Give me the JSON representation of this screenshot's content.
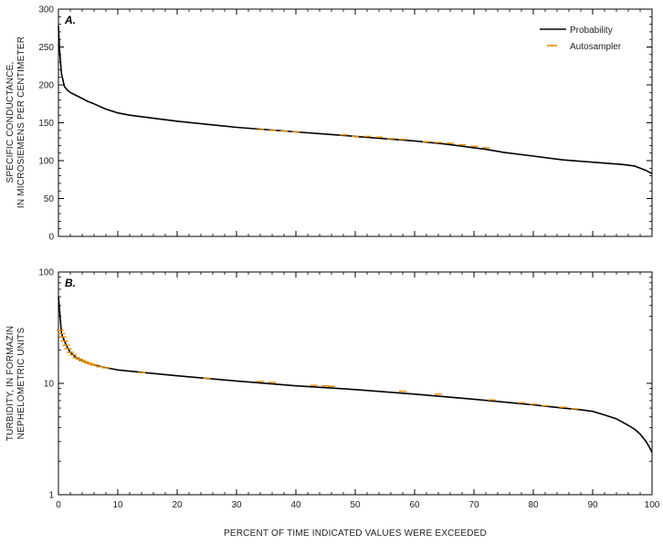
{
  "chart_data": [
    {
      "type": "line",
      "panel_label": "A.",
      "ylabel_lines": [
        "SPECIFIC CONDUCTANCE,",
        "IN MICROSIEMENS PER CENTIMETER"
      ],
      "xlabel": "",
      "xlim": [
        0,
        100
      ],
      "ylim": [
        0,
        300
      ],
      "yscale": "linear",
      "yticks": [
        0,
        50,
        100,
        150,
        200,
        250,
        300
      ],
      "xticks": [
        0,
        10,
        20,
        30,
        40,
        50,
        60,
        70,
        80,
        90,
        100
      ],
      "x_tick_labels_shown": false,
      "legend": {
        "placement": "top-right",
        "entries": [
          {
            "name": "Probability",
            "color": "#000000",
            "style": "solid"
          },
          {
            "name": "Autosampler",
            "color": "#e08a00",
            "style": "dash"
          }
        ]
      },
      "series": [
        {
          "name": "Probability",
          "color": "#000000",
          "x": [
            0,
            0.2,
            0.5,
            1,
            1.5,
            2,
            3,
            4,
            5,
            6,
            8,
            10,
            12,
            15,
            20,
            25,
            30,
            35,
            40,
            45,
            50,
            55,
            60,
            65,
            70,
            72,
            75,
            80,
            85,
            90,
            95,
            97,
            98,
            99,
            100
          ],
          "y": [
            278,
            245,
            215,
            198,
            193,
            190,
            186,
            182,
            178,
            175,
            168,
            163,
            160,
            157,
            152,
            148,
            144,
            141,
            138,
            135,
            132,
            129,
            126,
            122,
            117,
            115,
            111,
            106,
            101,
            98,
            95,
            93,
            90,
            87,
            83
          ]
        },
        {
          "name": "Autosampler",
          "color": "#e08a00",
          "x": [
            34,
            36,
            38,
            40,
            48,
            50,
            52,
            54,
            56,
            58,
            62,
            64,
            66,
            68,
            70,
            72
          ],
          "y": [
            141,
            140,
            139,
            138,
            134,
            132,
            132,
            131,
            129,
            128,
            125,
            124,
            123,
            121,
            119,
            117
          ]
        }
      ]
    },
    {
      "type": "line",
      "panel_label": "B.",
      "ylabel_lines": [
        "TURBIDITY, IN FORMAZIN",
        "NEPHELOMETRIC UNITS"
      ],
      "xlabel": "PERCENT OF TIME INDICATED VALUES WERE EXCEEDED",
      "xlim": [
        0,
        100
      ],
      "ylim": [
        1,
        100
      ],
      "yscale": "log",
      "yticks": [
        1,
        10,
        100
      ],
      "xticks": [
        0,
        10,
        20,
        30,
        40,
        50,
        60,
        70,
        80,
        90,
        100
      ],
      "x_tick_labels": [
        "0",
        "10",
        "20",
        "30",
        "40",
        "50",
        "60",
        "70",
        "80",
        "90",
        "100"
      ],
      "series": [
        {
          "name": "Probability",
          "color": "#000000",
          "x": [
            0,
            0.2,
            0.5,
            1,
            1.5,
            2,
            3,
            4,
            5,
            6,
            8,
            10,
            15,
            20,
            30,
            40,
            50,
            60,
            70,
            75,
            80,
            85,
            88,
            90,
            92,
            94,
            96,
            97,
            98,
            99,
            99.5,
            100
          ],
          "y": [
            60,
            45,
            28,
            24,
            21,
            19,
            17,
            16,
            15.2,
            14.6,
            13.8,
            13.2,
            12.4,
            11.7,
            10.5,
            9.5,
            8.8,
            8.0,
            7.2,
            6.8,
            6.4,
            6.0,
            5.8,
            5.6,
            5.2,
            4.8,
            4.2,
            3.9,
            3.5,
            3.0,
            2.7,
            2.4
          ]
        },
        {
          "name": "Autosampler",
          "color": "#e08a00",
          "x": [
            0.3,
            0.5,
            0.7,
            1.0,
            1.3,
            1.6,
            2.0,
            2.5,
            3.0,
            3.5,
            4.0,
            4.5,
            5.0,
            5.5,
            6.0,
            7.0,
            8.0,
            14,
            25,
            34,
            36,
            43,
            45,
            46,
            58,
            64,
            73,
            78,
            80,
            82,
            85,
            87
          ],
          "y": [
            30,
            28,
            26,
            24,
            22,
            20.5,
            19,
            18,
            17,
            16.5,
            16,
            15.6,
            15.2,
            14.9,
            14.6,
            14.1,
            13.8,
            12.5,
            11.1,
            10.4,
            10.2,
            9.6,
            9.5,
            9.4,
            8.5,
            8.0,
            7.1,
            6.7,
            6.5,
            6.3,
            6.1,
            5.9
          ]
        }
      ]
    }
  ]
}
